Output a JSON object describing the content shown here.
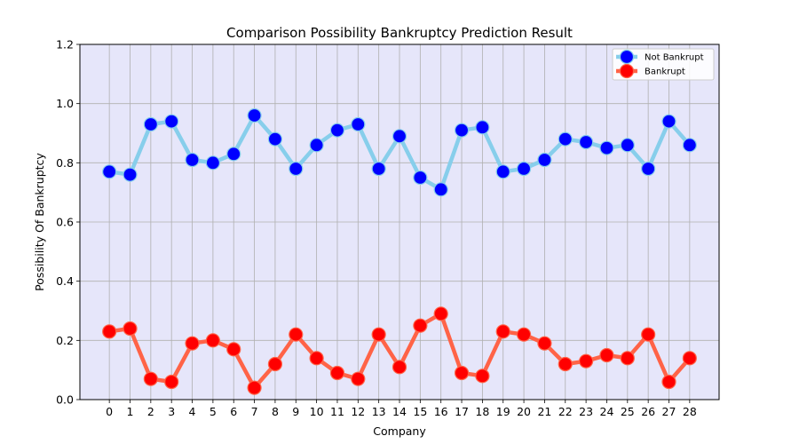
{
  "chart_data": {
    "type": "line",
    "title": "Comparison Possibility Bankruptcy Prediction Result",
    "xlabel": "Company",
    "ylabel": "Possibility Of Bankruptcy",
    "x": [
      0,
      1,
      2,
      3,
      4,
      5,
      6,
      7,
      8,
      9,
      10,
      11,
      12,
      13,
      14,
      15,
      16,
      17,
      18,
      19,
      20,
      21,
      22,
      23,
      24,
      25,
      26,
      27,
      28
    ],
    "ylim": [
      0.0,
      1.2
    ],
    "yticks": [
      0.0,
      0.2,
      0.4,
      0.6,
      0.8,
      1.0,
      1.2
    ],
    "ytick_labels": [
      "0.0",
      "0.2",
      "0.4",
      "0.6",
      "0.8",
      "1.0",
      "1.2"
    ],
    "grid": true,
    "plot_background": "#e6e6fa",
    "legend_position": "top-right",
    "series": [
      {
        "name": "Not Bankrupt",
        "line_color": "#87ceeb",
        "marker_color": "#0000ff",
        "values": [
          0.77,
          0.76,
          0.93,
          0.94,
          0.81,
          0.8,
          0.83,
          0.96,
          0.88,
          0.78,
          0.86,
          0.91,
          0.93,
          0.78,
          0.89,
          0.75,
          0.71,
          0.91,
          0.92,
          0.77,
          0.78,
          0.81,
          0.88,
          0.87,
          0.85,
          0.86,
          0.78,
          0.94,
          0.86
        ]
      },
      {
        "name": "Bankrupt",
        "line_color": "#ff6347",
        "marker_color": "#ff0000",
        "values": [
          0.23,
          0.24,
          0.07,
          0.06,
          0.19,
          0.2,
          0.17,
          0.04,
          0.12,
          0.22,
          0.14,
          0.09,
          0.07,
          0.22,
          0.11,
          0.25,
          0.29,
          0.09,
          0.08,
          0.23,
          0.22,
          0.19,
          0.12,
          0.13,
          0.15,
          0.14,
          0.22,
          0.06,
          0.14
        ]
      }
    ]
  }
}
